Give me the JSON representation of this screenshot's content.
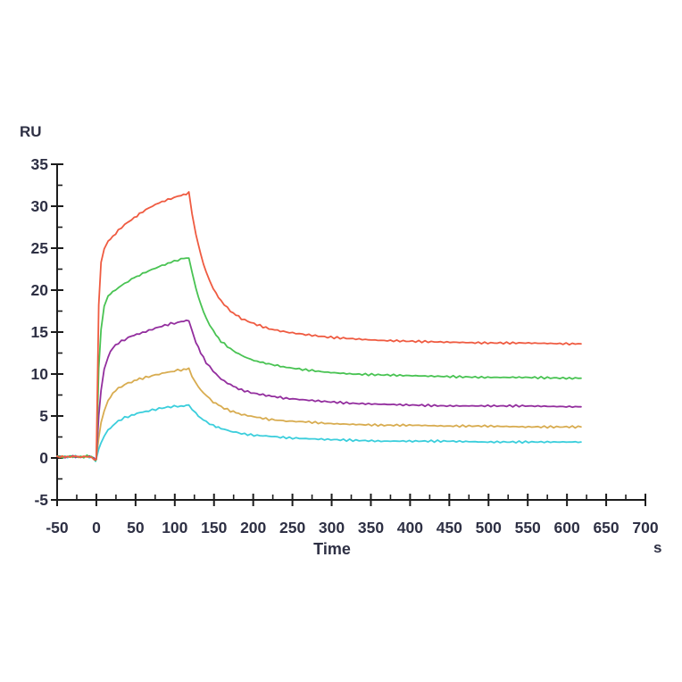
{
  "figure": {
    "background_color": "#ffffff",
    "axis_color": "#1c1c1c",
    "tick_label_color": "#2e3044"
  },
  "chart_data": {
    "type": "line",
    "title": "",
    "ylabel": "RU",
    "xlabel": "Time",
    "x_unit": "s",
    "xlim": [
      -50,
      700
    ],
    "ylim": [
      -5,
      35
    ],
    "x_ticks": [
      -50,
      0,
      50,
      100,
      150,
      200,
      250,
      300,
      350,
      400,
      450,
      500,
      550,
      600,
      650,
      700
    ],
    "y_ticks": [
      -5,
      0,
      5,
      10,
      15,
      20,
      25,
      30,
      35
    ],
    "x_minor_step": 25,
    "y_minor_step": 2.5,
    "grid": false,
    "legend_position": "none",
    "description": "SPR sensorgram: five concentration curves, baseline at 0 RU until t=0, association phase 0-118 s, sharp peak, then dissociation decay to plateau ending near t=618 s",
    "series": [
      {
        "name": "cyan",
        "color": "#3bcedc",
        "peak_ru": 6.3,
        "plateau_ru": 1.9,
        "points": [
          [
            -50,
            0.2
          ],
          [
            -40,
            0.1
          ],
          [
            -30,
            0.2
          ],
          [
            -20,
            0.1
          ],
          [
            -12,
            0.2
          ],
          [
            -6,
            0.1
          ],
          [
            -3,
            -0.1
          ],
          [
            -1,
            -0.3
          ],
          [
            0,
            -0.1
          ],
          [
            3,
            1.0
          ],
          [
            6,
            1.8
          ],
          [
            10,
            2.6
          ],
          [
            15,
            3.3
          ],
          [
            21,
            3.9
          ],
          [
            28,
            4.4
          ],
          [
            36,
            4.8
          ],
          [
            45,
            5.1
          ],
          [
            55,
            5.4
          ],
          [
            67,
            5.6
          ],
          [
            80,
            5.9
          ],
          [
            95,
            6.1
          ],
          [
            108,
            6.2
          ],
          [
            118,
            6.3
          ],
          [
            122,
            5.8
          ],
          [
            127,
            5.3
          ],
          [
            133,
            4.8
          ],
          [
            140,
            4.3
          ],
          [
            149,
            3.9
          ],
          [
            159,
            3.5
          ],
          [
            171,
            3.2
          ],
          [
            185,
            2.9
          ],
          [
            201,
            2.7
          ],
          [
            220,
            2.6
          ],
          [
            242,
            2.4
          ],
          [
            267,
            2.3
          ],
          [
            295,
            2.2
          ],
          [
            327,
            2.1
          ],
          [
            363,
            2.0
          ],
          [
            403,
            2.0
          ],
          [
            447,
            2.0
          ],
          [
            495,
            1.9
          ],
          [
            547,
            1.9
          ],
          [
            603,
            1.9
          ],
          [
            618,
            1.9
          ]
        ]
      },
      {
        "name": "yellow",
        "color": "#d8ac50",
        "peak_ru": 10.6,
        "plateau_ru": 3.7,
        "points": [
          [
            -50,
            0.2
          ],
          [
            -40,
            0.1
          ],
          [
            -30,
            0.2
          ],
          [
            -20,
            0.1
          ],
          [
            -12,
            0.2
          ],
          [
            -6,
            0.1
          ],
          [
            -3,
            -0.1
          ],
          [
            -1,
            -0.3
          ],
          [
            0,
            -0.1
          ],
          [
            3,
            2.4
          ],
          [
            6,
            4.1
          ],
          [
            10,
            5.7
          ],
          [
            15,
            6.9
          ],
          [
            21,
            7.7
          ],
          [
            28,
            8.3
          ],
          [
            36,
            8.7
          ],
          [
            45,
            9.1
          ],
          [
            55,
            9.4
          ],
          [
            67,
            9.7
          ],
          [
            80,
            10.0
          ],
          [
            95,
            10.3
          ],
          [
            108,
            10.5
          ],
          [
            118,
            10.6
          ],
          [
            122,
            9.8
          ],
          [
            127,
            9.0
          ],
          [
            133,
            8.1
          ],
          [
            140,
            7.4
          ],
          [
            149,
            6.7
          ],
          [
            159,
            6.1
          ],
          [
            171,
            5.6
          ],
          [
            185,
            5.2
          ],
          [
            201,
            4.9
          ],
          [
            220,
            4.6
          ],
          [
            242,
            4.4
          ],
          [
            267,
            4.3
          ],
          [
            295,
            4.1
          ],
          [
            327,
            4.0
          ],
          [
            363,
            3.9
          ],
          [
            403,
            3.9
          ],
          [
            447,
            3.8
          ],
          [
            495,
            3.8
          ],
          [
            547,
            3.7
          ],
          [
            603,
            3.7
          ],
          [
            618,
            3.7
          ]
        ]
      },
      {
        "name": "purple",
        "color": "#932e9e",
        "peak_ru": 16.4,
        "plateau_ru": 6.1,
        "points": [
          [
            -50,
            0.2
          ],
          [
            -40,
            0.1
          ],
          [
            -30,
            0.2
          ],
          [
            -20,
            0.1
          ],
          [
            -12,
            0.2
          ],
          [
            -6,
            0.1
          ],
          [
            -3,
            -0.1
          ],
          [
            -1,
            -0.3
          ],
          [
            0,
            -0.1
          ],
          [
            3,
            5.0
          ],
          [
            6,
            8.1
          ],
          [
            10,
            10.5
          ],
          [
            15,
            12.1
          ],
          [
            21,
            13.1
          ],
          [
            28,
            13.7
          ],
          [
            36,
            14.1
          ],
          [
            45,
            14.5
          ],
          [
            55,
            14.8
          ],
          [
            67,
            15.2
          ],
          [
            80,
            15.6
          ],
          [
            95,
            16.0
          ],
          [
            108,
            16.2
          ],
          [
            118,
            16.4
          ],
          [
            122,
            15.1
          ],
          [
            127,
            13.8
          ],
          [
            133,
            12.5
          ],
          [
            140,
            11.4
          ],
          [
            149,
            10.3
          ],
          [
            159,
            9.4
          ],
          [
            171,
            8.7
          ],
          [
            185,
            8.1
          ],
          [
            201,
            7.7
          ],
          [
            220,
            7.4
          ],
          [
            242,
            7.1
          ],
          [
            267,
            6.9
          ],
          [
            295,
            6.7
          ],
          [
            327,
            6.5
          ],
          [
            363,
            6.4
          ],
          [
            403,
            6.3
          ],
          [
            447,
            6.2
          ],
          [
            495,
            6.2
          ],
          [
            547,
            6.2
          ],
          [
            603,
            6.1
          ],
          [
            618,
            6.1
          ]
        ]
      },
      {
        "name": "green",
        "color": "#49c353",
        "peak_ru": 23.9,
        "plateau_ru": 9.5,
        "points": [
          [
            -50,
            0.2
          ],
          [
            -40,
            0.1
          ],
          [
            -30,
            0.2
          ],
          [
            -20,
            0.1
          ],
          [
            -12,
            0.2
          ],
          [
            -6,
            0.1
          ],
          [
            -3,
            -0.1
          ],
          [
            -1,
            -0.3
          ],
          [
            0,
            -0.1
          ],
          [
            3,
            10.7
          ],
          [
            6,
            15.4
          ],
          [
            10,
            18.0
          ],
          [
            15,
            19.2
          ],
          [
            21,
            19.8
          ],
          [
            28,
            20.3
          ],
          [
            36,
            20.8
          ],
          [
            45,
            21.3
          ],
          [
            55,
            21.8
          ],
          [
            67,
            22.3
          ],
          [
            80,
            22.8
          ],
          [
            95,
            23.3
          ],
          [
            108,
            23.7
          ],
          [
            118,
            23.9
          ],
          [
            122,
            22.1
          ],
          [
            127,
            20.1
          ],
          [
            133,
            18.3
          ],
          [
            140,
            16.7
          ],
          [
            149,
            15.1
          ],
          [
            159,
            13.9
          ],
          [
            171,
            13.0
          ],
          [
            185,
            12.2
          ],
          [
            201,
            11.6
          ],
          [
            220,
            11.2
          ],
          [
            242,
            10.8
          ],
          [
            267,
            10.5
          ],
          [
            295,
            10.2
          ],
          [
            327,
            10.0
          ],
          [
            363,
            9.9
          ],
          [
            403,
            9.8
          ],
          [
            447,
            9.7
          ],
          [
            495,
            9.6
          ],
          [
            547,
            9.6
          ],
          [
            603,
            9.5
          ],
          [
            618,
            9.5
          ]
        ]
      },
      {
        "name": "red",
        "color": "#ef5b41",
        "peak_ru": 31.6,
        "plateau_ru": 13.6,
        "points": [
          [
            -50,
            0.2
          ],
          [
            -40,
            0.1
          ],
          [
            -30,
            0.2
          ],
          [
            -20,
            0.1
          ],
          [
            -12,
            0.2
          ],
          [
            -6,
            0.1
          ],
          [
            -3,
            -0.1
          ],
          [
            -1,
            -0.3
          ],
          [
            0,
            -0.1
          ],
          [
            3,
            18.3
          ],
          [
            6,
            23.2
          ],
          [
            10,
            25.0
          ],
          [
            15,
            25.8
          ],
          [
            21,
            26.4
          ],
          [
            28,
            27.1
          ],
          [
            36,
            27.8
          ],
          [
            45,
            28.4
          ],
          [
            55,
            29.1
          ],
          [
            67,
            29.8
          ],
          [
            80,
            30.4
          ],
          [
            95,
            30.9
          ],
          [
            108,
            31.3
          ],
          [
            118,
            31.6
          ],
          [
            122,
            29.2
          ],
          [
            127,
            26.6
          ],
          [
            133,
            24.3
          ],
          [
            140,
            22.1
          ],
          [
            149,
            20.2
          ],
          [
            159,
            18.7
          ],
          [
            171,
            17.5
          ],
          [
            185,
            16.6
          ],
          [
            201,
            16.0
          ],
          [
            220,
            15.4
          ],
          [
            242,
            15.0
          ],
          [
            267,
            14.7
          ],
          [
            295,
            14.4
          ],
          [
            327,
            14.2
          ],
          [
            363,
            14.0
          ],
          [
            403,
            13.9
          ],
          [
            447,
            13.8
          ],
          [
            495,
            13.7
          ],
          [
            547,
            13.7
          ],
          [
            603,
            13.6
          ],
          [
            618,
            13.6
          ]
        ]
      }
    ]
  }
}
